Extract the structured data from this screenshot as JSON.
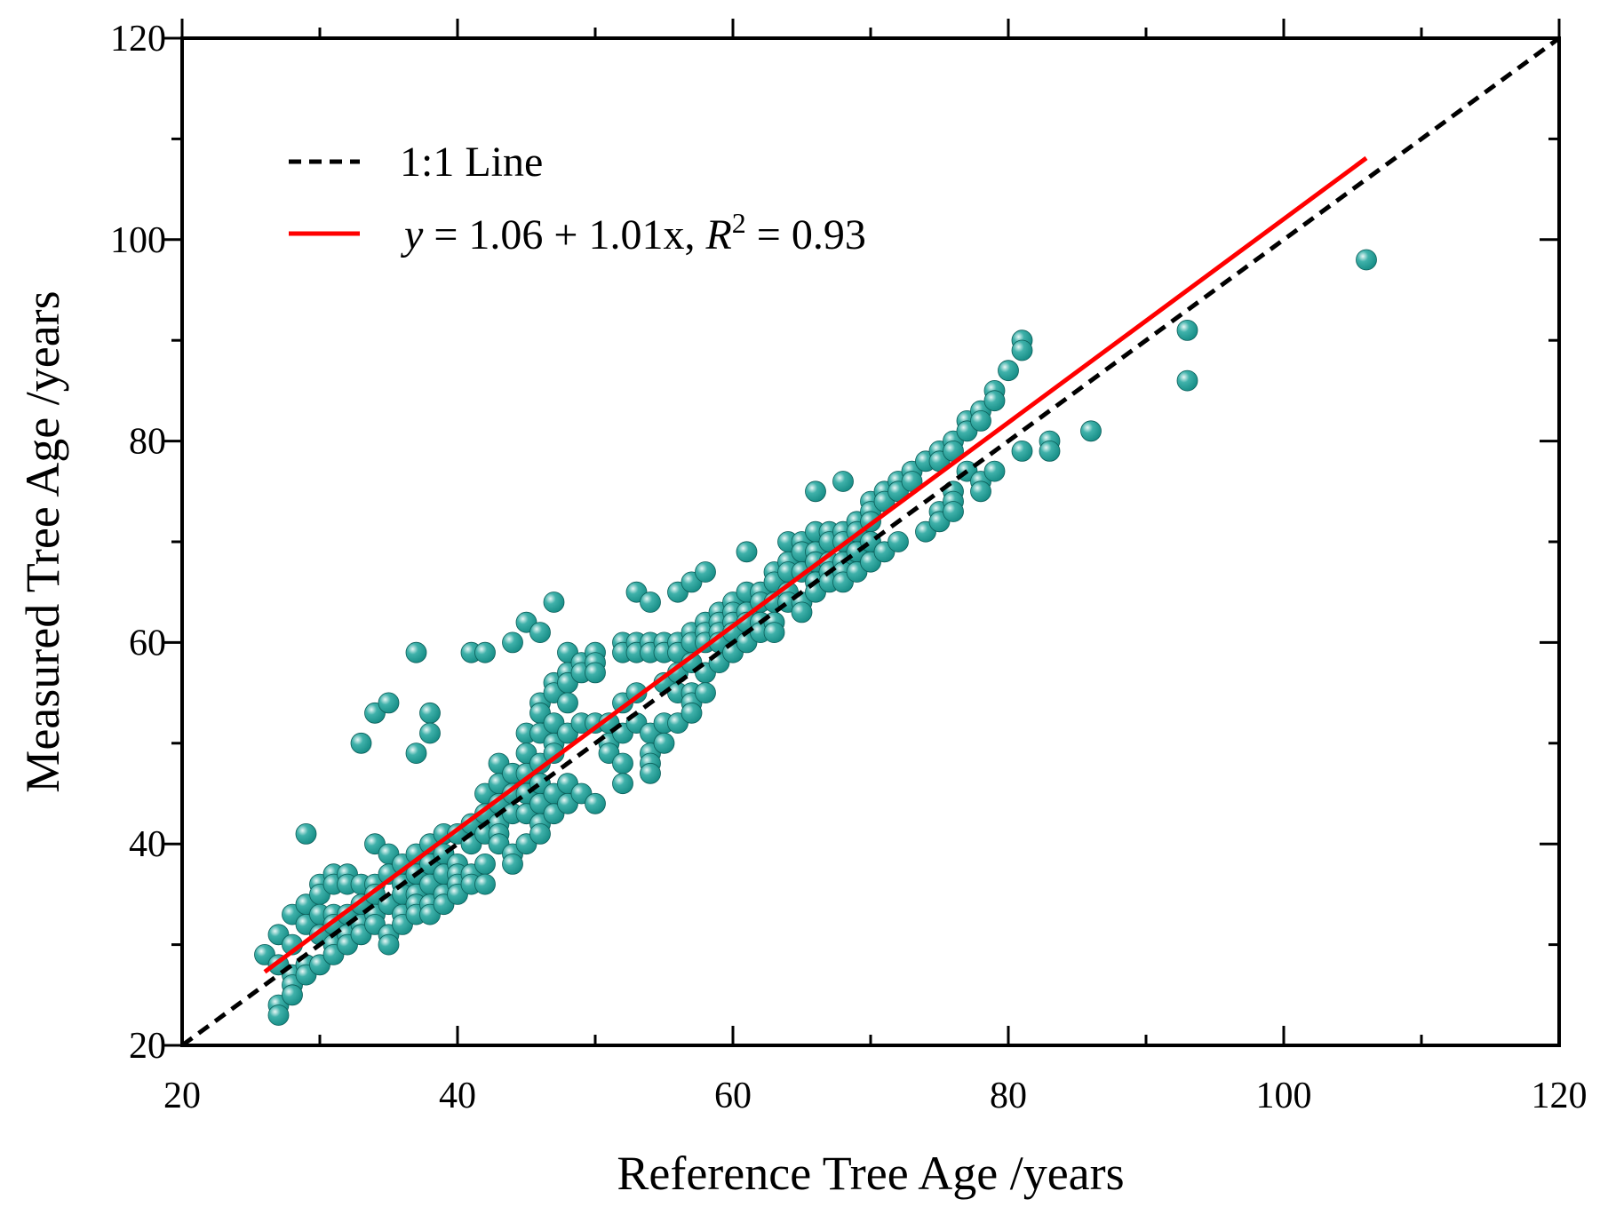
{
  "chart_data": {
    "type": "scatter",
    "title": "",
    "xlabel": "Reference Tree Age /years",
    "ylabel": "Measured Tree Age /years",
    "xlim": [
      20,
      120
    ],
    "ylim": [
      20,
      120
    ],
    "xticks": [
      20,
      40,
      60,
      80,
      100,
      120
    ],
    "yticks": [
      20,
      40,
      60,
      80,
      100,
      120
    ],
    "xtick_labels": [
      "20",
      "40",
      "60",
      "80",
      "100",
      "120"
    ],
    "ytick_labels": [
      "20",
      "40",
      "60",
      "80",
      "100",
      "120"
    ],
    "minor_step": 10,
    "grid": false,
    "legend_position": "top-left",
    "legend": {
      "one_to_one": "1:1 Line",
      "fit_y": "y",
      "fit_eq": " = 1.06 + 1.01x, ",
      "fit_r": "R",
      "fit_sup": "2",
      "fit_end": " = 0.93"
    },
    "colors": {
      "points": "#138a83",
      "point_highlight": "#e9f7f6",
      "fit_line": "#ff0000",
      "one_to_one_line": "#000000"
    },
    "series": [
      {
        "name": "1:1 Line",
        "kind": "line",
        "style": "dashed",
        "x": [
          20,
          120
        ],
        "y": [
          20,
          120
        ]
      },
      {
        "name": "y = 1.06 + 1.01x, R2 = 0.93",
        "kind": "line",
        "style": "solid",
        "intercept": 1.06,
        "slope": 1.01,
        "r2": 0.93,
        "x": [
          26,
          106
        ],
        "y": [
          27.3,
          108.1
        ]
      },
      {
        "name": "observations",
        "kind": "scatter",
        "points": [
          [
            26,
            29
          ],
          [
            27,
            31
          ],
          [
            27,
            28
          ],
          [
            27,
            24
          ],
          [
            27,
            23
          ],
          [
            28,
            33
          ],
          [
            28,
            30
          ],
          [
            28,
            27
          ],
          [
            28,
            26
          ],
          [
            28,
            25
          ],
          [
            29,
            41
          ],
          [
            29,
            34
          ],
          [
            29,
            32
          ],
          [
            29,
            28
          ],
          [
            29,
            27
          ],
          [
            30,
            36
          ],
          [
            30,
            35
          ],
          [
            30,
            33
          ],
          [
            30,
            31
          ],
          [
            30,
            28
          ],
          [
            31,
            37
          ],
          [
            31,
            36
          ],
          [
            31,
            33
          ],
          [
            31,
            32
          ],
          [
            31,
            30
          ],
          [
            31,
            29
          ],
          [
            32,
            37
          ],
          [
            32,
            36
          ],
          [
            32,
            33
          ],
          [
            32,
            31
          ],
          [
            32,
            30
          ],
          [
            33,
            50
          ],
          [
            33,
            36
          ],
          [
            33,
            34
          ],
          [
            33,
            32
          ],
          [
            33,
            31
          ],
          [
            34,
            53
          ],
          [
            34,
            40
          ],
          [
            34,
            36
          ],
          [
            34,
            35
          ],
          [
            34,
            33
          ],
          [
            34,
            32
          ],
          [
            35,
            54
          ],
          [
            35,
            39
          ],
          [
            35,
            37
          ],
          [
            35,
            34
          ],
          [
            35,
            31
          ],
          [
            35,
            30
          ],
          [
            36,
            38
          ],
          [
            36,
            36
          ],
          [
            36,
            35
          ],
          [
            36,
            33
          ],
          [
            36,
            32
          ],
          [
            37,
            59
          ],
          [
            37,
            49
          ],
          [
            37,
            39
          ],
          [
            37,
            37
          ],
          [
            37,
            35
          ],
          [
            37,
            34
          ],
          [
            37,
            33
          ],
          [
            38,
            53
          ],
          [
            38,
            51
          ],
          [
            38,
            40
          ],
          [
            38,
            38
          ],
          [
            38,
            36
          ],
          [
            38,
            34
          ],
          [
            38,
            33
          ],
          [
            39,
            41
          ],
          [
            39,
            39
          ],
          [
            39,
            37
          ],
          [
            39,
            35
          ],
          [
            39,
            34
          ],
          [
            40,
            41
          ],
          [
            40,
            38
          ],
          [
            40,
            37
          ],
          [
            40,
            36
          ],
          [
            40,
            35
          ],
          [
            41,
            59
          ],
          [
            41,
            42
          ],
          [
            41,
            40
          ],
          [
            41,
            37
          ],
          [
            41,
            36
          ],
          [
            42,
            59
          ],
          [
            42,
            45
          ],
          [
            42,
            43
          ],
          [
            42,
            41
          ],
          [
            42,
            38
          ],
          [
            42,
            36
          ],
          [
            43,
            48
          ],
          [
            43,
            46
          ],
          [
            43,
            44
          ],
          [
            43,
            42
          ],
          [
            43,
            41
          ],
          [
            43,
            40
          ],
          [
            44,
            60
          ],
          [
            44,
            47
          ],
          [
            44,
            45
          ],
          [
            44,
            43
          ],
          [
            44,
            39
          ],
          [
            44,
            38
          ],
          [
            45,
            62
          ],
          [
            45,
            51
          ],
          [
            45,
            49
          ],
          [
            45,
            47
          ],
          [
            45,
            45
          ],
          [
            45,
            43
          ],
          [
            45,
            40
          ],
          [
            46,
            61
          ],
          [
            46,
            54
          ],
          [
            46,
            53
          ],
          [
            46,
            51
          ],
          [
            46,
            48
          ],
          [
            46,
            46
          ],
          [
            46,
            44
          ],
          [
            46,
            42
          ],
          [
            46,
            41
          ],
          [
            47,
            64
          ],
          [
            47,
            56
          ],
          [
            47,
            55
          ],
          [
            47,
            52
          ],
          [
            47,
            50
          ],
          [
            47,
            49
          ],
          [
            47,
            45
          ],
          [
            47,
            43
          ],
          [
            48,
            59
          ],
          [
            48,
            57
          ],
          [
            48,
            56
          ],
          [
            48,
            54
          ],
          [
            48,
            51
          ],
          [
            48,
            46
          ],
          [
            48,
            44
          ],
          [
            49,
            58
          ],
          [
            49,
            57
          ],
          [
            49,
            52
          ],
          [
            49,
            45
          ],
          [
            50,
            59
          ],
          [
            50,
            58
          ],
          [
            50,
            57
          ],
          [
            50,
            52
          ],
          [
            50,
            44
          ],
          [
            51,
            52
          ],
          [
            51,
            50
          ],
          [
            51,
            49
          ],
          [
            52,
            60
          ],
          [
            52,
            59
          ],
          [
            52,
            54
          ],
          [
            52,
            51
          ],
          [
            52,
            48
          ],
          [
            52,
            46
          ],
          [
            53,
            65
          ],
          [
            53,
            60
          ],
          [
            53,
            59
          ],
          [
            53,
            55
          ],
          [
            53,
            52
          ],
          [
            54,
            64
          ],
          [
            54,
            60
          ],
          [
            54,
            59
          ],
          [
            54,
            51
          ],
          [
            54,
            49
          ],
          [
            54,
            48
          ],
          [
            54,
            47
          ],
          [
            55,
            60
          ],
          [
            55,
            59
          ],
          [
            55,
            56
          ],
          [
            55,
            52
          ],
          [
            55,
            50
          ],
          [
            56,
            65
          ],
          [
            56,
            60
          ],
          [
            56,
            59
          ],
          [
            56,
            57
          ],
          [
            56,
            55
          ],
          [
            56,
            52
          ],
          [
            57,
            66
          ],
          [
            57,
            61
          ],
          [
            57,
            60
          ],
          [
            57,
            58
          ],
          [
            57,
            55
          ],
          [
            57,
            54
          ],
          [
            57,
            53
          ],
          [
            58,
            67
          ],
          [
            58,
            62
          ],
          [
            58,
            61
          ],
          [
            58,
            60
          ],
          [
            58,
            57
          ],
          [
            58,
            55
          ],
          [
            59,
            63
          ],
          [
            59,
            62
          ],
          [
            59,
            61
          ],
          [
            59,
            60
          ],
          [
            59,
            58
          ],
          [
            60,
            64
          ],
          [
            60,
            63
          ],
          [
            60,
            62
          ],
          [
            60,
            61
          ],
          [
            60,
            59
          ],
          [
            61,
            69
          ],
          [
            61,
            65
          ],
          [
            61,
            63
          ],
          [
            61,
            62
          ],
          [
            61,
            60
          ],
          [
            62,
            65
          ],
          [
            62,
            64
          ],
          [
            62,
            62
          ],
          [
            62,
            61
          ],
          [
            63,
            67
          ],
          [
            63,
            66
          ],
          [
            63,
            64
          ],
          [
            63,
            62
          ],
          [
            63,
            61
          ],
          [
            64,
            70
          ],
          [
            64,
            68
          ],
          [
            64,
            67
          ],
          [
            64,
            65
          ],
          [
            64,
            64
          ],
          [
            65,
            70
          ],
          [
            65,
            69
          ],
          [
            65,
            67
          ],
          [
            65,
            64
          ],
          [
            65,
            63
          ],
          [
            66,
            75
          ],
          [
            66,
            71
          ],
          [
            66,
            69
          ],
          [
            66,
            68
          ],
          [
            66,
            66
          ],
          [
            66,
            65
          ],
          [
            67,
            71
          ],
          [
            67,
            70
          ],
          [
            67,
            68
          ],
          [
            67,
            67
          ],
          [
            67,
            66
          ],
          [
            68,
            76
          ],
          [
            68,
            71
          ],
          [
            68,
            70
          ],
          [
            68,
            68
          ],
          [
            68,
            67
          ],
          [
            68,
            66
          ],
          [
            69,
            72
          ],
          [
            69,
            71
          ],
          [
            69,
            69
          ],
          [
            69,
            67
          ],
          [
            70,
            74
          ],
          [
            70,
            73
          ],
          [
            70,
            72
          ],
          [
            70,
            70
          ],
          [
            70,
            68
          ],
          [
            71,
            75
          ],
          [
            71,
            74
          ],
          [
            71,
            69
          ],
          [
            72,
            76
          ],
          [
            72,
            75
          ],
          [
            72,
            70
          ],
          [
            73,
            77
          ],
          [
            73,
            76
          ],
          [
            74,
            78
          ],
          [
            74,
            71
          ],
          [
            75,
            79
          ],
          [
            75,
            78
          ],
          [
            75,
            73
          ],
          [
            75,
            72
          ],
          [
            76,
            80
          ],
          [
            76,
            79
          ],
          [
            76,
            75
          ],
          [
            76,
            74
          ],
          [
            76,
            73
          ],
          [
            77,
            82
          ],
          [
            77,
            81
          ],
          [
            77,
            77
          ],
          [
            78,
            83
          ],
          [
            78,
            82
          ],
          [
            78,
            76
          ],
          [
            78,
            75
          ],
          [
            79,
            85
          ],
          [
            79,
            84
          ],
          [
            79,
            77
          ],
          [
            80,
            87
          ],
          [
            81,
            90
          ],
          [
            81,
            89
          ],
          [
            81,
            79
          ],
          [
            83,
            80
          ],
          [
            83,
            79
          ],
          [
            86,
            81
          ],
          [
            93,
            91
          ],
          [
            93,
            86
          ],
          [
            106,
            98
          ]
        ]
      }
    ]
  }
}
